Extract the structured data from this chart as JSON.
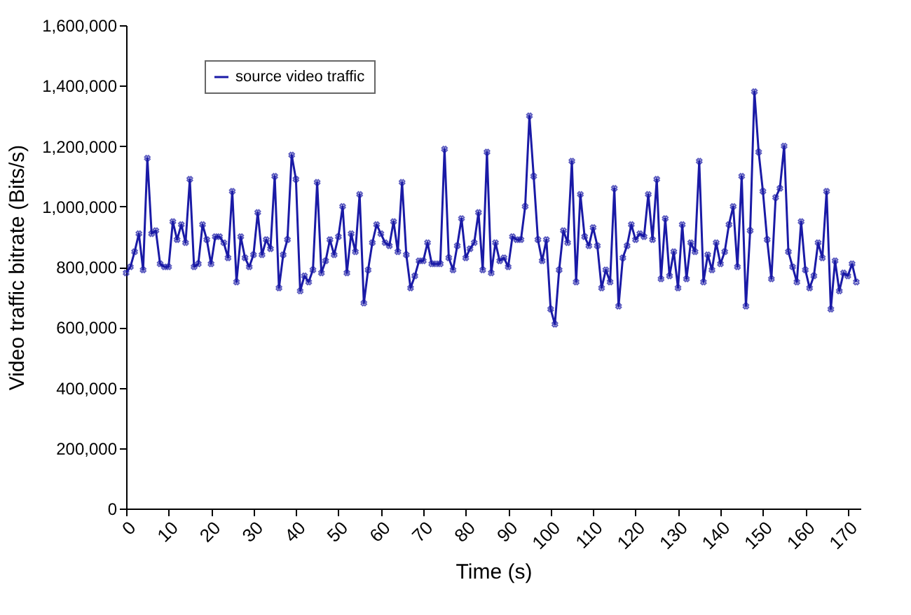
{
  "chart_data": {
    "type": "line",
    "xlabel": "Time (s)",
    "ylabel": "Video traffic bitrate (Bits/s)",
    "x": [
      0,
      1,
      2,
      3,
      4,
      5,
      6,
      7,
      8,
      9,
      10,
      11,
      12,
      13,
      14,
      15,
      16,
      17,
      18,
      19,
      20,
      21,
      22,
      23,
      24,
      25,
      26,
      27,
      28,
      29,
      30,
      31,
      32,
      33,
      34,
      35,
      36,
      37,
      38,
      39,
      40,
      41,
      42,
      43,
      44,
      45,
      46,
      47,
      48,
      49,
      50,
      51,
      52,
      53,
      54,
      55,
      56,
      57,
      58,
      59,
      60,
      61,
      62,
      63,
      64,
      65,
      66,
      67,
      68,
      69,
      70,
      71,
      72,
      73,
      74,
      75,
      76,
      77,
      78,
      79,
      80,
      81,
      82,
      83,
      84,
      85,
      86,
      87,
      88,
      89,
      90,
      91,
      92,
      93,
      94,
      95,
      96,
      97,
      98,
      99,
      100,
      101,
      102,
      103,
      104,
      105,
      106,
      107,
      108,
      109,
      110,
      111,
      112,
      113,
      114,
      115,
      116,
      117,
      118,
      119,
      120,
      121,
      122,
      123,
      124,
      125,
      126,
      127,
      128,
      129,
      130,
      131,
      132,
      133,
      134,
      135,
      136,
      137,
      138,
      139,
      140,
      141,
      142,
      143,
      144,
      145,
      146,
      147,
      148,
      149,
      150,
      151,
      152,
      153,
      154,
      155,
      156,
      157,
      158,
      159,
      160,
      161,
      162,
      163,
      164,
      165,
      166,
      167,
      168,
      169,
      170,
      171,
      172
    ],
    "series": [
      {
        "name": "source video traffic",
        "color": "#1a1aa6",
        "values": [
          780000,
          800000,
          850000,
          910000,
          790000,
          1160000,
          910000,
          920000,
          810000,
          800000,
          800000,
          950000,
          890000,
          940000,
          880000,
          1090000,
          800000,
          810000,
          940000,
          890000,
          810000,
          900000,
          900000,
          880000,
          830000,
          1050000,
          750000,
          900000,
          830000,
          800000,
          840000,
          980000,
          840000,
          890000,
          860000,
          1100000,
          730000,
          840000,
          890000,
          1170000,
          1090000,
          720000,
          770000,
          750000,
          790000,
          1080000,
          780000,
          820000,
          890000,
          840000,
          900000,
          1000000,
          780000,
          910000,
          850000,
          1040000,
          680000,
          790000,
          880000,
          940000,
          910000,
          880000,
          870000,
          950000,
          850000,
          1080000,
          840000,
          730000,
          770000,
          820000,
          820000,
          880000,
          810000,
          810000,
          810000,
          1190000,
          830000,
          790000,
          870000,
          960000,
          830000,
          860000,
          880000,
          980000,
          790000,
          1180000,
          780000,
          880000,
          820000,
          830000,
          800000,
          900000,
          890000,
          890000,
          1000000,
          1300000,
          1100000,
          890000,
          820000,
          890000,
          660000,
          610000,
          790000,
          920000,
          880000,
          1150000,
          750000,
          1040000,
          900000,
          870000,
          930000,
          870000,
          730000,
          790000,
          750000,
          1060000,
          670000,
          830000,
          870000,
          940000,
          890000,
          910000,
          900000,
          1040000,
          890000,
          1090000,
          760000,
          960000,
          770000,
          850000,
          730000,
          940000,
          760000,
          880000,
          850000,
          1150000,
          750000,
          840000,
          790000,
          880000,
          810000,
          850000,
          940000,
          1000000,
          800000,
          1100000,
          670000,
          920000,
          1380000,
          1180000,
          1050000,
          890000,
          760000,
          1030000,
          1060000,
          1200000,
          850000,
          800000,
          750000,
          950000,
          790000,
          730000,
          770000,
          880000,
          830000,
          1050000,
          660000,
          820000,
          720000,
          780000,
          770000,
          810000,
          750000
        ]
      }
    ],
    "xlim": [
      0,
      173
    ],
    "xticks": [
      0,
      10,
      20,
      30,
      40,
      50,
      60,
      70,
      80,
      90,
      100,
      110,
      120,
      130,
      140,
      150,
      160,
      170
    ],
    "ylim": [
      0,
      1600000
    ],
    "yticks": [
      0,
      {
        "value": 200000,
        "label": "200,000"
      },
      {
        "value": 400000,
        "label": "400,000"
      },
      {
        "value": 600000,
        "label": "600,000"
      },
      {
        "value": 800000,
        "label": "800,000"
      },
      {
        "value": 1000000,
        "label": "1,000,000"
      },
      {
        "value": 1200000,
        "label": "1,200,000"
      },
      {
        "value": 1400000,
        "label": "1,400,000"
      },
      {
        "value": 1600000,
        "label": "1,600,000"
      }
    ],
    "grid": false,
    "legend": "top left",
    "marker": "cross",
    "line_style": "solid"
  }
}
